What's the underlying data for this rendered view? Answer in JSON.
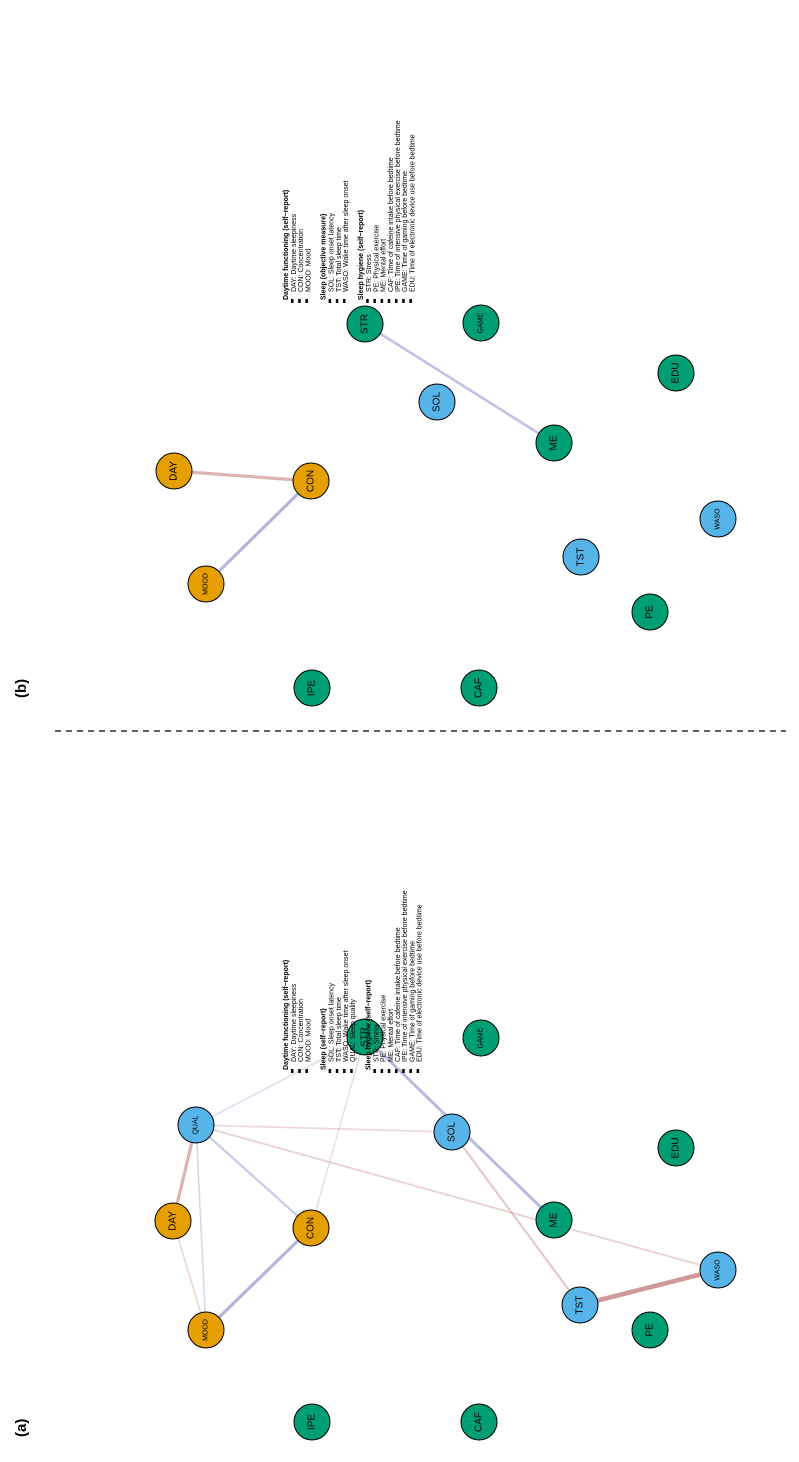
{
  "colors": {
    "daytime": "#E69F00",
    "sleep": "#56B4E9",
    "hygiene": "#009E73",
    "positive_edge": "#C98A8A",
    "negative_edge": "#8C8CC8"
  },
  "panels": [
    {
      "label": "(a)",
      "nodes": [
        {
          "id": "IPE",
          "group": "hygiene"
        },
        {
          "id": "CAF",
          "group": "hygiene"
        },
        {
          "id": "MOOD",
          "group": "daytime"
        },
        {
          "id": "PE",
          "group": "hygiene"
        },
        {
          "id": "DAY",
          "group": "daytime"
        },
        {
          "id": "QUAL",
          "group": "sleep"
        },
        {
          "id": "CON",
          "group": "daytime"
        },
        {
          "id": "TST",
          "group": "sleep"
        },
        {
          "id": "WASO",
          "group": "sleep"
        },
        {
          "id": "SOL",
          "group": "sleep"
        },
        {
          "id": "ME",
          "group": "hygiene"
        },
        {
          "id": "STR",
          "group": "hygiene"
        },
        {
          "id": "GAME",
          "group": "hygiene"
        },
        {
          "id": "EDU",
          "group": "hygiene"
        }
      ],
      "edges": [
        {
          "from": "MOOD",
          "to": "CON",
          "sign": "negative",
          "weight": 0.55
        },
        {
          "from": "DAY",
          "to": "QUAL",
          "sign": "positive",
          "weight": 0.55
        },
        {
          "from": "MOOD",
          "to": "DAY",
          "sign": "positive",
          "weight": 0.15
        },
        {
          "from": "MOOD",
          "to": "QUAL",
          "sign": "negative",
          "weight": 0.15
        },
        {
          "from": "QUAL",
          "to": "CON",
          "sign": "negative",
          "weight": 0.3
        },
        {
          "from": "QUAL",
          "to": "SOL",
          "sign": "positive",
          "weight": 0.15
        },
        {
          "from": "QUAL",
          "to": "WASO",
          "sign": "positive",
          "weight": 0.2
        },
        {
          "from": "QUAL",
          "to": "STR",
          "sign": "negative",
          "weight": 0.1
        },
        {
          "from": "CON",
          "to": "STR",
          "sign": "positive",
          "weight": 0.1
        },
        {
          "from": "STR",
          "to": "ME",
          "sign": "negative",
          "weight": 0.5
        },
        {
          "from": "SOL",
          "to": "TST",
          "sign": "positive",
          "weight": 0.3
        },
        {
          "from": "TST",
          "to": "WASO",
          "sign": "positive",
          "weight": 0.9
        }
      ],
      "legend": [
        {
          "title": "Daytime functioning (self−report)",
          "items": [
            "DAY: Daytime sleepiness",
            "CON: Concentration",
            "MOOD: Mood"
          ]
        },
        {
          "title": "Sleep (self−report)",
          "items": [
            "SOL: Sleep onset latency",
            "TST: Total sleep time",
            "WASO: Wake time after sleep onset",
            "QUAL: Sleep quality"
          ]
        },
        {
          "title": "Sleep hygiene (self−report)",
          "items": [
            "STR: Stress",
            "PE: Physical exercise",
            "ME: Mental effort",
            "CAF: Time of cafeine intake before bedtime",
            "IPE: Time of intensive physical exercise before bedtime",
            "GAME: Time of gaming before bedtime",
            "EDU: Time of electronic device use before bedtime"
          ]
        }
      ]
    },
    {
      "label": "(b)",
      "nodes": [
        {
          "id": "IPE",
          "group": "hygiene"
        },
        {
          "id": "CAF",
          "group": "hygiene"
        },
        {
          "id": "MOOD",
          "group": "daytime"
        },
        {
          "id": "PE",
          "group": "hygiene"
        },
        {
          "id": "TST",
          "group": "sleep"
        },
        {
          "id": "WASO",
          "group": "sleep"
        },
        {
          "id": "CON",
          "group": "daytime"
        },
        {
          "id": "DAY",
          "group": "daytime"
        },
        {
          "id": "ME",
          "group": "hygiene"
        },
        {
          "id": "SOL",
          "group": "sleep"
        },
        {
          "id": "EDU",
          "group": "hygiene"
        },
        {
          "id": "STR",
          "group": "hygiene"
        },
        {
          "id": "GAME",
          "group": "hygiene"
        }
      ],
      "edges": [
        {
          "from": "MOOD",
          "to": "CON",
          "sign": "negative",
          "weight": 0.55
        },
        {
          "from": "DAY",
          "to": "CON",
          "sign": "positive",
          "weight": 0.55
        },
        {
          "from": "STR",
          "to": "ME",
          "sign": "negative",
          "weight": 0.4
        }
      ],
      "legend": [
        {
          "title": "Daytime functioning (self−report)",
          "items": [
            "DAY: Daytime sleepiness",
            "CON: Concentration",
            "MOOD: Mood"
          ]
        },
        {
          "title": "Sleep (objective measure)",
          "items": [
            "SOL: Sleep onset latency",
            "TST: Total sleep time",
            "WASO: Wake time after sleep onset"
          ]
        },
        {
          "title": "Sleep hygiene (self−report)",
          "items": [
            "STR: Stress",
            "PE: Physical exercise",
            "ME: Mental effort",
            "CAF: Time of cafeine intake before bedtime",
            "IPE: Time of intensive physical exercise before bedtime",
            "GAME: Time of gaming before bedtime",
            "EDU: Time of electronic device use before bedtime"
          ]
        }
      ]
    }
  ]
}
